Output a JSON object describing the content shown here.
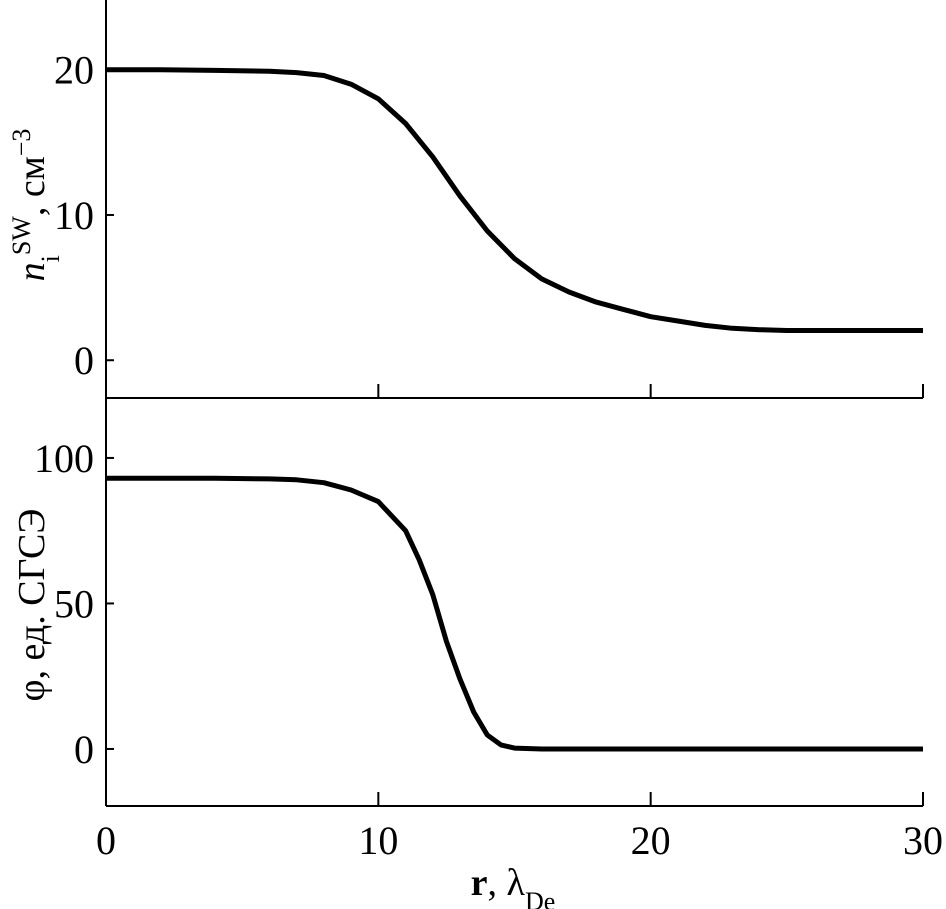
{
  "chart_data": [
    {
      "type": "line",
      "ylabel": [
        "n",
        "i",
        "SW",
        ", см",
        "−3"
      ],
      "x": [
        0,
        2,
        4,
        6,
        7,
        8,
        9,
        10,
        11,
        12,
        13,
        14,
        15,
        16,
        17,
        18,
        19,
        20,
        21,
        22,
        23,
        24,
        25,
        26,
        28,
        30
      ],
      "series": [
        {
          "color": "#000000",
          "values": [
            20,
            20,
            19.95,
            19.9,
            19.8,
            19.6,
            19.0,
            18.0,
            16.3,
            14.0,
            11.3,
            8.9,
            7.0,
            5.6,
            4.7,
            4.0,
            3.5,
            3.0,
            2.7,
            2.4,
            2.2,
            2.1,
            2.05,
            2.05,
            2.05,
            2.05
          ]
        }
      ],
      "xlim": [
        0,
        30
      ],
      "xticks": [
        0,
        10,
        20,
        30
      ],
      "ylim": [
        -2.6,
        24.8
      ],
      "yticks": [
        0,
        10,
        20
      ]
    },
    {
      "type": "line",
      "ylabel": [
        "φ, ед. СГСЭ"
      ],
      "xlabel": [
        "r",
        ", λ",
        "De"
      ],
      "x": [
        0,
        4,
        6,
        7,
        8,
        9,
        10,
        11,
        11.5,
        12,
        12.5,
        13,
        13.5,
        14,
        14.5,
        15,
        16,
        18,
        30
      ],
      "series": [
        {
          "color": "#000000",
          "values": [
            93,
            93,
            92.8,
            92.5,
            91.5,
            89,
            85,
            75,
            65,
            53,
            37,
            24,
            12.7,
            4.8,
            1.4,
            0.3,
            0,
            0,
            0
          ]
        }
      ],
      "xlim": [
        0,
        30
      ],
      "xticks": [
        0,
        10,
        20,
        30
      ],
      "ylim": [
        -19.6,
        120.6
      ],
      "yticks": [
        0,
        50,
        100
      ]
    }
  ]
}
